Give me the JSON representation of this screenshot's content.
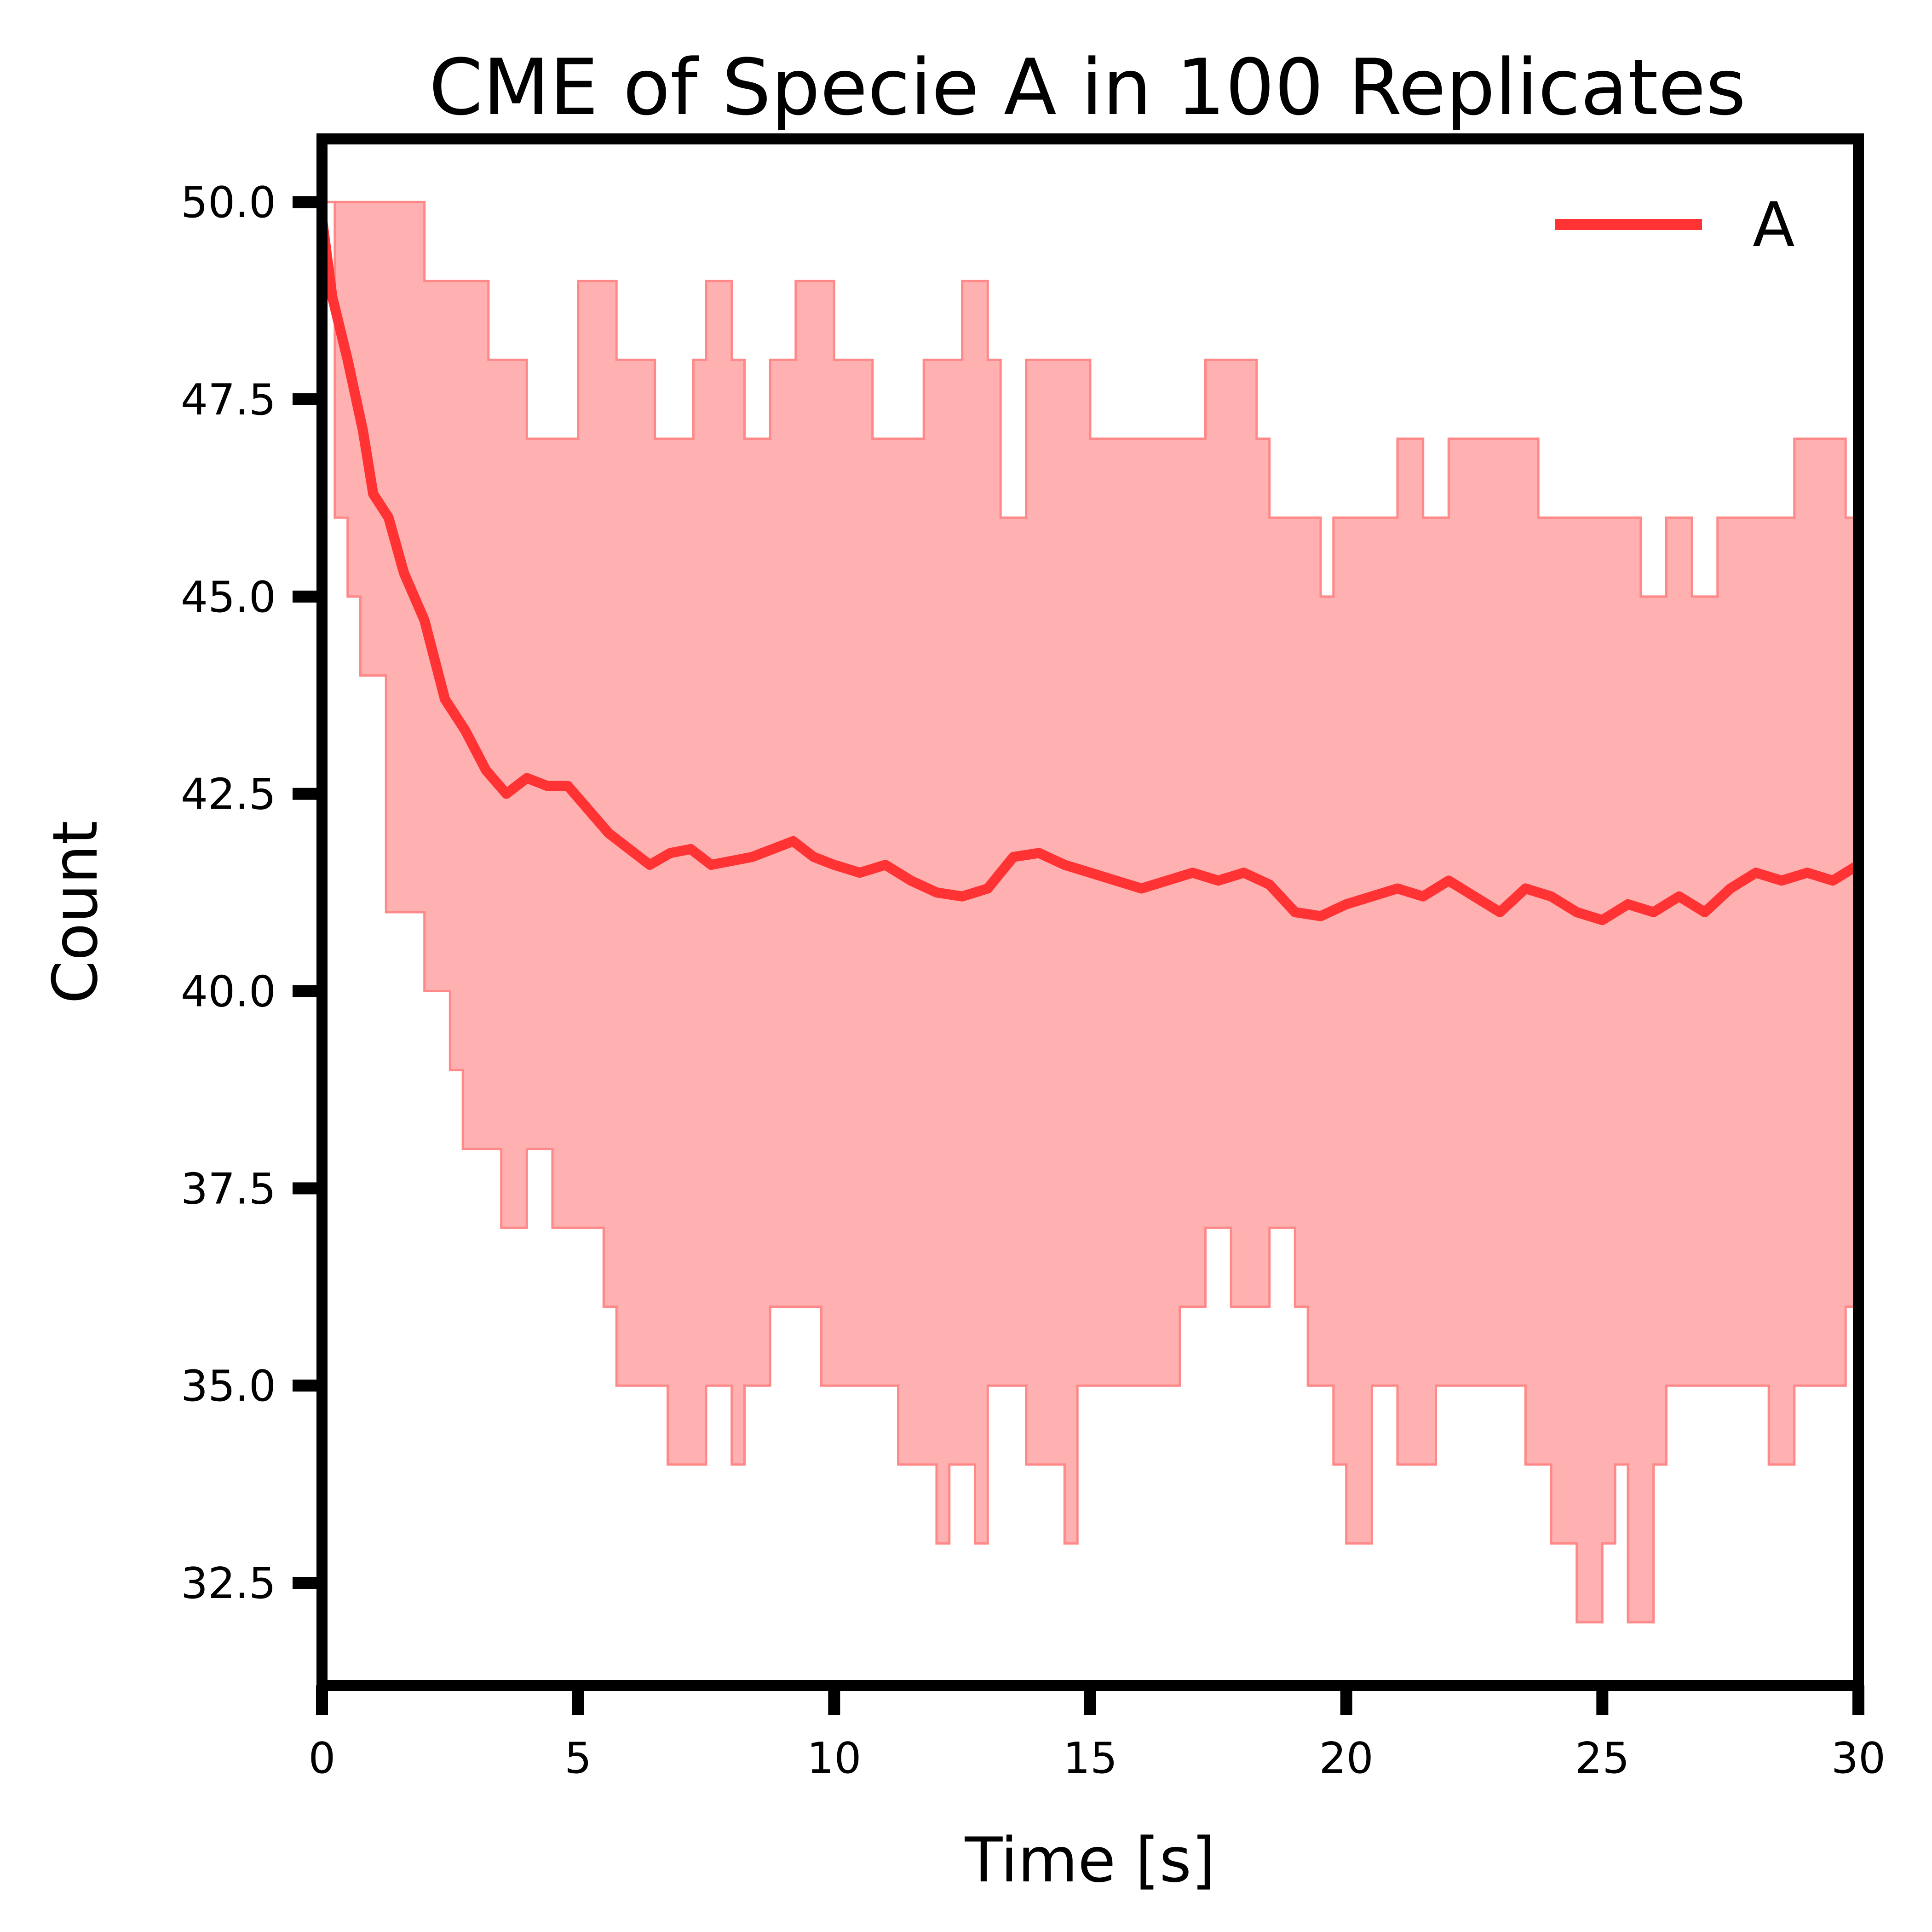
{
  "chart_data": {
    "type": "line",
    "title": "CME of Specie A in 100 Replicates",
    "xlabel": "Time [s]",
    "ylabel": "Count",
    "xlim": [
      0,
      30
    ],
    "ylim": [
      31.2,
      50.8
    ],
    "xticks": [
      "0",
      "5",
      "10",
      "15",
      "20",
      "25",
      "30"
    ],
    "yticks": [
      "32.5",
      "35.0",
      "37.5",
      "40.0",
      "42.5",
      "45.0",
      "47.5",
      "50.0"
    ],
    "grid": false,
    "legend": {
      "position": "top-right",
      "entries": [
        "A"
      ]
    },
    "colors": {
      "mean_line": "#ff3333",
      "band_fill": "#ffb0b0",
      "band_edge": "#ff8888"
    },
    "series": [
      {
        "name": "A",
        "x": [
          0,
          0.2,
          0.5,
          0.8,
          1.0,
          1.3,
          1.6,
          2.0,
          2.4,
          2.8,
          3.2,
          3.6,
          4.0,
          4.4,
          4.8,
          5.2,
          5.6,
          6.0,
          6.4,
          6.8,
          7.2,
          7.6,
          8.0,
          8.4,
          8.8,
          9.2,
          9.6,
          10.0,
          10.5,
          11.0,
          11.5,
          12.0,
          12.5,
          13.0,
          13.5,
          14.0,
          14.5,
          15.0,
          15.5,
          16.0,
          16.5,
          17.0,
          17.5,
          18.0,
          18.5,
          19.0,
          19.5,
          20.0,
          20.5,
          21.0,
          21.5,
          22.0,
          22.5,
          23.0,
          23.5,
          24.0,
          24.5,
          25.0,
          25.5,
          26.0,
          26.5,
          27.0,
          27.5,
          28.0,
          28.5,
          29.0,
          29.5,
          30.0
        ],
        "y": [
          49.8,
          48.8,
          48.0,
          47.1,
          46.3,
          46.0,
          45.3,
          44.7,
          43.7,
          43.3,
          42.8,
          42.5,
          42.7,
          42.6,
          42.6,
          42.3,
          42.0,
          41.8,
          41.6,
          41.75,
          41.8,
          41.6,
          41.65,
          41.7,
          41.8,
          41.9,
          41.7,
          41.6,
          41.5,
          41.6,
          41.4,
          41.25,
          41.2,
          41.3,
          41.7,
          41.75,
          41.6,
          41.5,
          41.4,
          41.3,
          41.4,
          41.5,
          41.4,
          41.5,
          41.35,
          41.0,
          40.95,
          41.1,
          41.2,
          41.3,
          41.2,
          41.4,
          41.2,
          41.0,
          41.3,
          41.2,
          41.0,
          40.9,
          41.1,
          41.0,
          41.2,
          41.0,
          41.3,
          41.5,
          41.4,
          41.5,
          41.4,
          41.6
        ]
      }
    ],
    "band": {
      "x": [
        0,
        0.25,
        0.5,
        0.75,
        1.0,
        1.25,
        1.5,
        1.75,
        2.0,
        2.25,
        2.5,
        2.75,
        3.0,
        3.25,
        3.5,
        3.75,
        4.0,
        4.25,
        4.5,
        4.75,
        5.0,
        5.25,
        5.5,
        5.75,
        6.0,
        6.25,
        6.5,
        6.75,
        7.0,
        7.25,
        7.5,
        7.75,
        8.0,
        8.25,
        8.5,
        8.75,
        9.0,
        9.25,
        9.5,
        9.75,
        10.0,
        10.25,
        10.5,
        10.75,
        11.0,
        11.25,
        11.5,
        11.75,
        12.0,
        12.25,
        12.5,
        12.75,
        13.0,
        13.25,
        13.5,
        13.75,
        14.0,
        14.25,
        14.5,
        14.75,
        15.0,
        15.25,
        15.5,
        15.75,
        16.0,
        16.25,
        16.5,
        16.75,
        17.0,
        17.25,
        17.5,
        17.75,
        18.0,
        18.25,
        18.5,
        18.75,
        19.0,
        19.25,
        19.5,
        19.75,
        20.0,
        20.25,
        20.5,
        20.75,
        21.0,
        21.25,
        21.5,
        21.75,
        22.0,
        22.25,
        22.5,
        22.75,
        23.0,
        23.25,
        23.5,
        23.75,
        24.0,
        24.25,
        24.5,
        24.75,
        25.0,
        25.25,
        25.5,
        25.75,
        26.0,
        26.25,
        26.5,
        26.75,
        27.0,
        27.25,
        27.5,
        27.75,
        28.0,
        28.25,
        28.5,
        28.75,
        29.0,
        29.25,
        29.5,
        29.75,
        30.0
      ],
      "upper": [
        50,
        50,
        50,
        50,
        50,
        50,
        50,
        50,
        49,
        49,
        49,
        49,
        49,
        48,
        48,
        48,
        47,
        47,
        47,
        47,
        49,
        49,
        49,
        48,
        48,
        48,
        47,
        47,
        47,
        48,
        49,
        49,
        48,
        47,
        47,
        48,
        48,
        49,
        49,
        49,
        48,
        48,
        48,
        47,
        47,
        47,
        47,
        48,
        48,
        48,
        49,
        49,
        48,
        46,
        46,
        48,
        48,
        48,
        48,
        48,
        47,
        47,
        47,
        47,
        47,
        47,
        47,
        47,
        47,
        48,
        48,
        48,
        48,
        47,
        46,
        46,
        46,
        46,
        45,
        46,
        46,
        46,
        46,
        46,
        47,
        47,
        46,
        46,
        47,
        47,
        47,
        47,
        47,
        47,
        47,
        46,
        46,
        46,
        46,
        46,
        46,
        46,
        46,
        45,
        45,
        46,
        46,
        45,
        45,
        46,
        46,
        46,
        46,
        46,
        46,
        47,
        47,
        47,
        47,
        46,
        47
      ],
      "lower": [
        50,
        46,
        45,
        44,
        44,
        41,
        41,
        41,
        40,
        40,
        39,
        38,
        38,
        38,
        37,
        37,
        38,
        38,
        37,
        37,
        37,
        37,
        36,
        35,
        35,
        35,
        35,
        34,
        34,
        34,
        35,
        35,
        34,
        35,
        35,
        36,
        36,
        36,
        36,
        35,
        35,
        35,
        35,
        35,
        35,
        34,
        34,
        34,
        33,
        34,
        34,
        33,
        35,
        35,
        35,
        34,
        34,
        34,
        33,
        35,
        35,
        35,
        35,
        35,
        35,
        35,
        35,
        36,
        36,
        37,
        37,
        36,
        36,
        36,
        37,
        37,
        36,
        35,
        35,
        34,
        33,
        33,
        35,
        35,
        34,
        34,
        34,
        35,
        35,
        35,
        35,
        35,
        35,
        35,
        34,
        34,
        33,
        33,
        32,
        32,
        33,
        34,
        32,
        32,
        34,
        35,
        35,
        35,
        35,
        35,
        35,
        35,
        35,
        34,
        34,
        35,
        35,
        35,
        35,
        36,
        36
      ]
    }
  }
}
